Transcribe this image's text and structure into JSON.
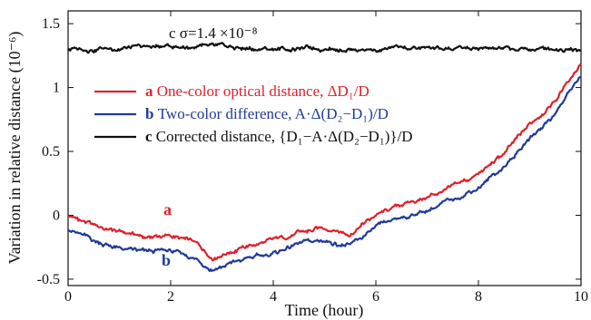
{
  "chart_data": {
    "type": "line",
    "title": "",
    "xlabel": "Time (hour)",
    "ylabel": "Variation in relative distance (10⁻⁶)",
    "xlim": [
      0,
      10
    ],
    "ylim": [
      -0.55,
      1.6
    ],
    "x_ticks": [
      0,
      2,
      4,
      6,
      8,
      10
    ],
    "x_tick_labels": [
      "0",
      "2",
      "4",
      "6",
      "8",
      "10"
    ],
    "y_ticks": [
      -0.5,
      0,
      0.5,
      1,
      1.5
    ],
    "y_tick_labels": [
      "-0.5",
      "0",
      "0.5",
      "1",
      "1.5"
    ],
    "grid": false,
    "legend_position": "middle-left",
    "series": [
      {
        "name": "a One-color optical distance, ΔD₁/D",
        "letter": "a",
        "label": "One-color optical distance, ΔD₁/D",
        "color": "#e0202a",
        "x": [
          0,
          0.5,
          1,
          1.5,
          2,
          2.5,
          2.8,
          3,
          3.5,
          4,
          4.5,
          5,
          5.5,
          6,
          6.5,
          7,
          7.5,
          8,
          8.5,
          9,
          9.5,
          10
        ],
        "y": [
          0.0,
          -0.08,
          -0.13,
          -0.17,
          -0.16,
          -0.22,
          -0.33,
          -0.3,
          -0.24,
          -0.2,
          -0.14,
          -0.1,
          -0.14,
          0.0,
          0.08,
          0.14,
          0.22,
          0.32,
          0.48,
          0.71,
          0.9,
          1.2
        ]
      },
      {
        "name": "b Two-color difference, A·Δ(D₂−D₁)/D",
        "letter": "b",
        "label": "Two-color difference, A·Δ(D₂−D₁)/D",
        "color": "#1f3a9a",
        "x": [
          0,
          0.5,
          1,
          1.5,
          2,
          2.5,
          2.8,
          3,
          3.5,
          4,
          4.5,
          5,
          5.5,
          6,
          6.5,
          7,
          7.5,
          8,
          8.5,
          9,
          9.5,
          10
        ],
        "y": [
          -0.1,
          -0.2,
          -0.26,
          -0.29,
          -0.28,
          -0.34,
          -0.42,
          -0.4,
          -0.34,
          -0.3,
          -0.22,
          -0.2,
          -0.24,
          -0.1,
          -0.02,
          0.04,
          0.12,
          0.22,
          0.38,
          0.6,
          0.8,
          1.1
        ]
      },
      {
        "name": "c Corrected distance, {D₁−A·Δ(D₂−D₁)}/D",
        "letter": "c",
        "label": "Corrected distance, {D₁−A·Δ(D₂−D₁)}/D",
        "color": "#111111",
        "x": [
          0,
          1,
          2,
          3,
          4,
          5,
          6,
          7,
          8,
          9,
          10
        ],
        "y": [
          1.3,
          1.31,
          1.32,
          1.31,
          1.3,
          1.31,
          1.3,
          1.31,
          1.3,
          1.3,
          1.31
        ]
      }
    ],
    "annotations": [
      {
        "text": "c σ=1.4 ×10⁻⁸",
        "series": "c"
      },
      {
        "text": "a",
        "series": "a"
      },
      {
        "text": "b",
        "series": "b"
      }
    ]
  }
}
